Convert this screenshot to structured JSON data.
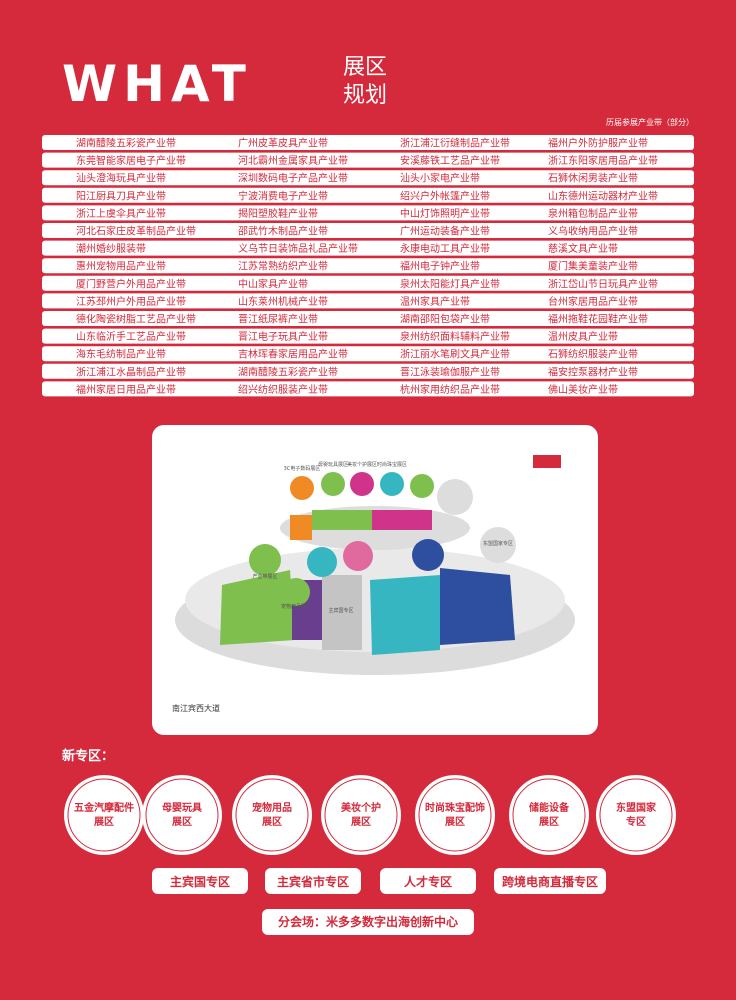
{
  "header": {
    "title": "WHAT",
    "subtitle_line1": "展区",
    "subtitle_line2": "规划",
    "note": "历届参展产业带（部分）"
  },
  "table": {
    "rows": [
      [
        "湖南醴陵五彩瓷产业带",
        "广州皮革皮具产业带",
        "浙江浦江衍缝制品产业带",
        "福州户外防护服产业带"
      ],
      [
        "东莞智能家居电子产业带",
        "河北霸州金属家具产业带",
        "安溪藤铁工艺品产业带",
        "浙江东阳家居用品产业带"
      ],
      [
        "汕头澄海玩具产业带",
        "深圳数码电子产品产业带",
        "汕头小家电产业带",
        "石狮休闲男装产业带"
      ],
      [
        "阳江厨具刀具产业带",
        "宁波消费电子产业带",
        "绍兴户外帐篷产业带",
        "山东德州运动器材产业带"
      ],
      [
        "浙江上虞伞具产业带",
        "揭阳塑胶鞋产业带",
        "中山灯饰照明产业带",
        "泉州箱包制品产业带"
      ],
      [
        "河北石家庄皮革制品产业带",
        "邵武竹木制品产业带",
        "广州运动装备产业带",
        "义乌收纳用品产业带"
      ],
      [
        "潮州婚纱服装带",
        "义乌节日装饰品礼品产业带",
        "永康电动工具产业带",
        "慈溪文具产业带"
      ],
      [
        "惠州宠物用品产业带",
        "江苏常熟纺织产业带",
        "福州电子钟产业带",
        "厦门集美童装产业带"
      ],
      [
        "厦门野营户外用品产业带",
        "中山家具产业带",
        "泉州太阳能灯具产业带",
        "浙江岱山节日玩具产业带"
      ],
      [
        "江苏邳州户外用品产业带",
        "山东莱州机械产业带",
        "温州家具产业带",
        "台州家居用品产业带"
      ],
      [
        "德化陶瓷树脂工艺品产业带",
        "晋江纸尿裤产业带",
        "湖南邵阳包袋产业带",
        "福州拖鞋花园鞋产业带"
      ],
      [
        "山东临沂手工艺品产业带",
        "晋江电子玩具产业带",
        "泉州纺织面料辅料产业带",
        "温州皮具产业带"
      ],
      [
        "海东毛纺制品产业带",
        "吉林珲春家居用品产业带",
        "浙江丽水笔刷文具产业带",
        "石狮纺织服装产业带"
      ],
      [
        "浙江浦江水晶制品产业带",
        "湖南醴陵五彩瓷产业带",
        "晋江泳装瑜伽服产业带",
        "福安控泵器材产业带"
      ],
      [
        "福州家居日用品产业带",
        "绍兴纺织服装产业带",
        "杭州家用纺织品产业带",
        "佛山美妆产业带"
      ]
    ]
  },
  "map": {
    "road": "南江宾西大道",
    "zones": [
      "3C电子数码展区",
      "母婴玩具展区",
      "美妆个护展区",
      "时尚珠宝展区",
      "东盟国家专区",
      "宠物用品展区",
      "主宾国专区",
      "产业带展区"
    ]
  },
  "new_zones": {
    "title": "新专区：",
    "circles": [
      [
        "五金汽摩配件",
        "展区"
      ],
      [
        "母婴玩具",
        "展区"
      ],
      [
        "宠物用品",
        "展区"
      ],
      [
        "美妆个护",
        "展区"
      ],
      [
        "时尚珠宝配饰",
        "展区"
      ],
      [
        "储能设备",
        "展区"
      ],
      [
        "东盟国家",
        "专区"
      ]
    ],
    "buttons": [
      "主宾国专区",
      "主宾省市专区",
      "人才专区",
      "跨境电商直播专区"
    ],
    "venue": "分会场：米多多数字出海创新中心"
  }
}
